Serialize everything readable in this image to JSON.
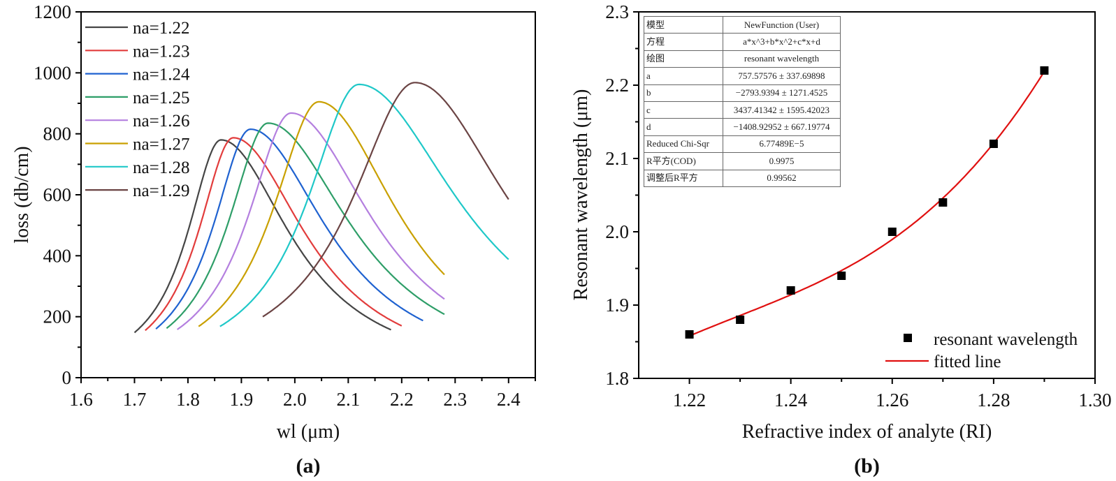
{
  "captions": {
    "a": "(a)",
    "b": "(b)"
  },
  "chart_data": [
    {
      "type": "line",
      "xlabel": "wl (μm)",
      "ylabel": "loss (db/cm)",
      "xlim": [
        1.6,
        2.45
      ],
      "ylim": [
        0,
        1200
      ],
      "xticks": [
        "1.6",
        "1.7",
        "1.8",
        "1.9",
        "2.0",
        "2.1",
        "2.2",
        "2.3",
        "2.4"
      ],
      "yticks": [
        "0",
        "200",
        "400",
        "600",
        "800",
        "1000",
        "1200"
      ],
      "legend_position": "top-left",
      "series": [
        {
          "name": "na=1.22",
          "color": "#454545",
          "start": [
            1.7,
            148
          ],
          "peak": [
            1.862,
            780
          ],
          "end": [
            2.18,
            157
          ]
        },
        {
          "name": "na=1.23",
          "color": "#e23c3c",
          "start": [
            1.72,
            155
          ],
          "peak": [
            1.885,
            787
          ],
          "end": [
            2.2,
            170
          ]
        },
        {
          "name": "na=1.24",
          "color": "#1f62d0",
          "start": [
            1.74,
            160
          ],
          "peak": [
            1.917,
            815
          ],
          "end": [
            2.24,
            187
          ]
        },
        {
          "name": "na=1.25",
          "color": "#2e9e68",
          "start": [
            1.76,
            162
          ],
          "peak": [
            1.95,
            835
          ],
          "end": [
            2.28,
            208
          ]
        },
        {
          "name": "na=1.26",
          "color": "#b47fdf",
          "start": [
            1.78,
            158
          ],
          "peak": [
            1.993,
            868
          ],
          "end": [
            2.28,
            258
          ]
        },
        {
          "name": "na=1.27",
          "color": "#c9a000",
          "start": [
            1.82,
            168
          ],
          "peak": [
            2.045,
            905
          ],
          "end": [
            2.28,
            338
          ]
        },
        {
          "name": "na=1.28",
          "color": "#1fc8c8",
          "start": [
            1.86,
            168
          ],
          "peak": [
            2.12,
            962
          ],
          "end": [
            2.4,
            388
          ]
        },
        {
          "name": "na=1.29",
          "color": "#6b4444",
          "start": [
            1.94,
            200
          ],
          "peak": [
            2.225,
            968
          ],
          "end": [
            2.4,
            585
          ]
        }
      ]
    },
    {
      "type": "scatter",
      "xlabel": "Refractive index of analyte (RI)",
      "ylabel": "Resonant wavelength (μm)",
      "xlim": [
        1.21,
        1.3
      ],
      "ylim": [
        1.8,
        2.3
      ],
      "xticks": [
        "1.22",
        "1.24",
        "1.26",
        "1.28",
        "1.30"
      ],
      "yticks": [
        "1.8",
        "1.9",
        "2.0",
        "2.1",
        "2.2",
        "2.3"
      ],
      "legend_position": "bottom-right",
      "points": {
        "name": "resonant wavelength",
        "color": "#000000",
        "x": [
          1.22,
          1.23,
          1.24,
          1.25,
          1.26,
          1.27,
          1.28,
          1.29
        ],
        "y": [
          1.86,
          1.88,
          1.92,
          1.94,
          2.0,
          2.04,
          2.12,
          2.22
        ]
      },
      "fit": {
        "name": "fitted line",
        "color": "#e01010",
        "coefficients": {
          "a": 757.57576,
          "b": -2793.9394,
          "c": 3437.41342,
          "d": -1408.92952
        }
      },
      "fit_table": [
        {
          "key": "模型",
          "value": "NewFunction (User)"
        },
        {
          "key": "方程",
          "value": "a*x^3+b*x^2+c*x+d"
        },
        {
          "key": "绘图",
          "value": "resonant wavelength"
        },
        {
          "key": "a",
          "value": "757.57576 ± 337.69898"
        },
        {
          "key": "b",
          "value": "−2793.9394 ± 1271.4525"
        },
        {
          "key": "c",
          "value": "3437.41342 ± 1595.42023"
        },
        {
          "key": "d",
          "value": "−1408.92952 ± 667.19774"
        },
        {
          "key": "Reduced Chi-Sqr",
          "value": "6.77489E−5"
        },
        {
          "key": "R平方(COD)",
          "value": "0.9975"
        },
        {
          "key": "调整后R平方",
          "value": "0.99562"
        }
      ]
    }
  ]
}
